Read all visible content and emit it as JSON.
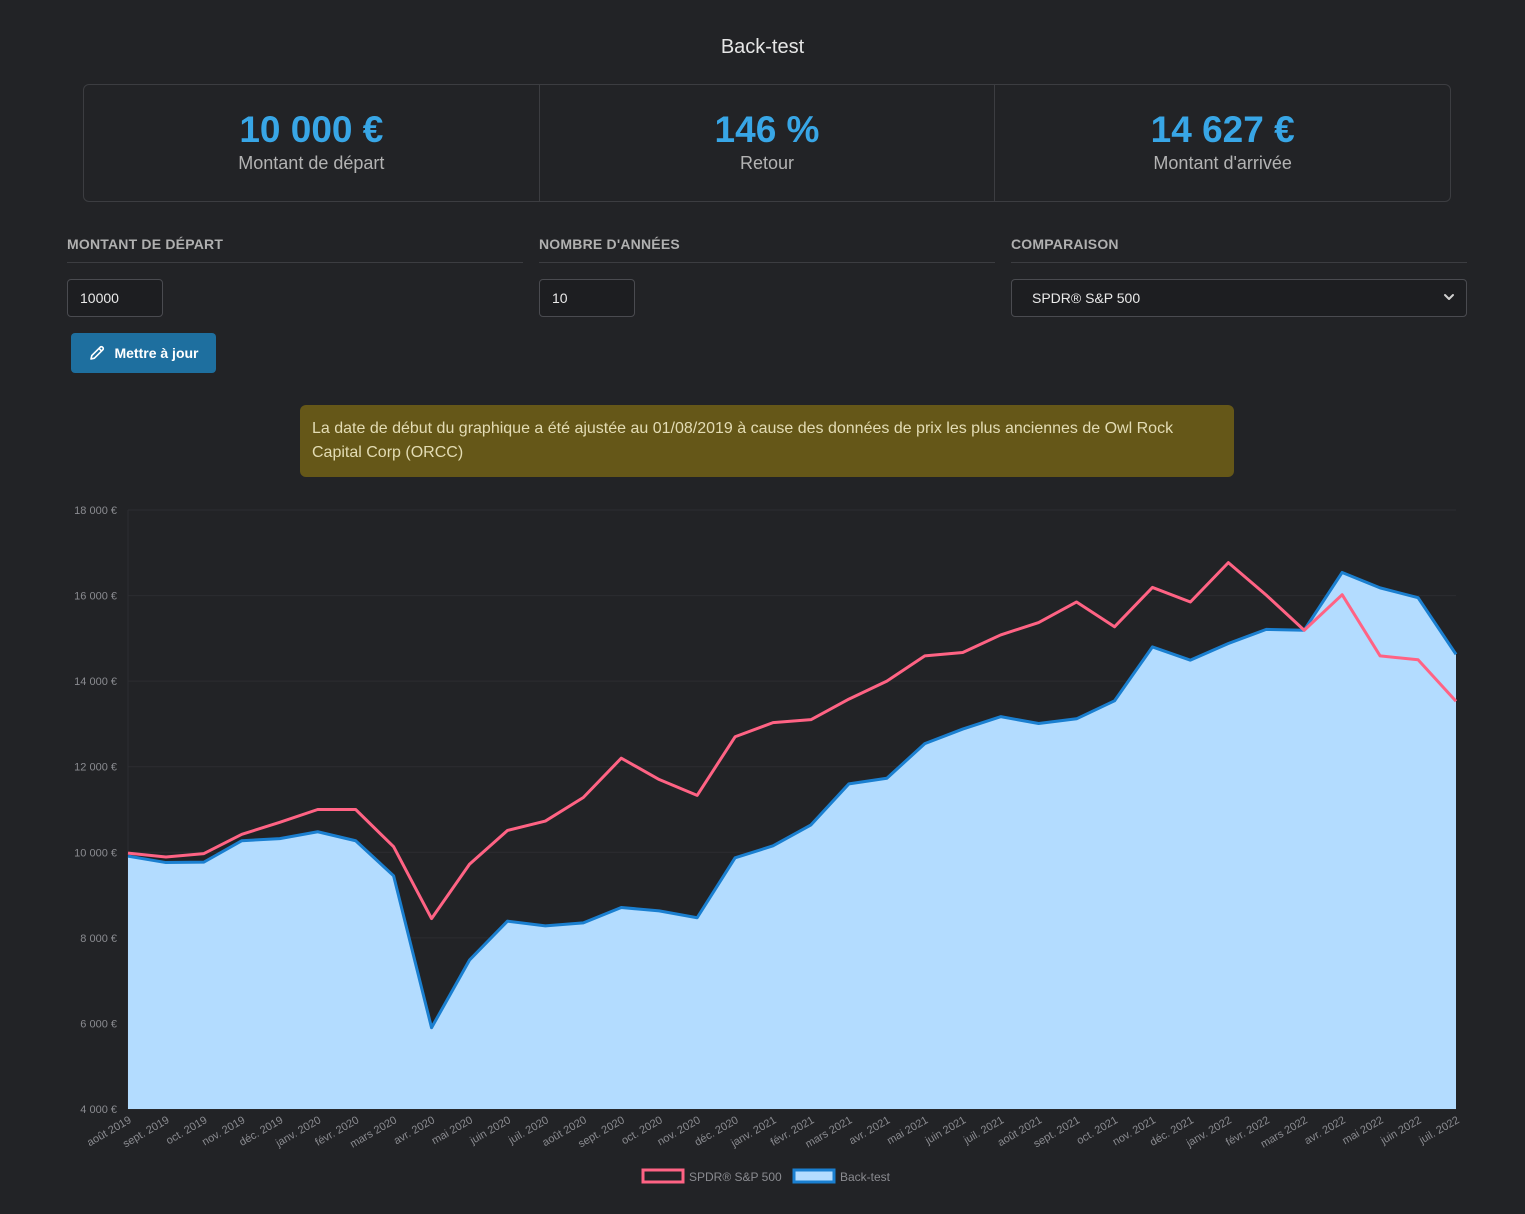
{
  "page": {
    "title": "Back-test"
  },
  "stats": [
    {
      "value": "10 000 €",
      "label": "Montant de départ"
    },
    {
      "value": "146 %",
      "label": "Retour"
    },
    {
      "value": "14 627 €",
      "label": "Montant d'arrivée"
    }
  ],
  "form": {
    "amount_label": "MONTANT DE DÉPART",
    "amount_value": "10000",
    "years_label": "NOMBRE D'ANNÉES",
    "years_value": "10",
    "compare_label": "COMPARAISON",
    "compare_value": "SPDR® S&P 500"
  },
  "update_button": {
    "label": "Mettre à jour",
    "icon": "pencil-icon"
  },
  "alert": {
    "text": "La date de début du graphique a été ajustée au 01/08/2019 à cause des données de prix les plus anciennes de Owl Rock Capital Corp (ORCC)"
  },
  "colors": {
    "accent": "#38a6e6",
    "button": "#1e6f9f",
    "alert_bg": "#655718",
    "sp500_line": "#ff6384",
    "backtest_line": "#1a7fd0",
    "backtest_fill": "#b3dcff"
  },
  "chart_data": {
    "type": "area",
    "y_ticks": [
      "4 000 €",
      "6 000 €",
      "8 000 €",
      "10 000 €",
      "12 000 €",
      "14 000 €",
      "16 000 €",
      "18 000 €"
    ],
    "ylim": [
      4000,
      18000
    ],
    "grid": true,
    "legend": "bottom-center",
    "x": [
      "août 2019",
      "sept. 2019",
      "oct. 2019",
      "nov. 2019",
      "déc. 2019",
      "janv. 2020",
      "févr. 2020",
      "mars 2020",
      "avr. 2020",
      "mai 2020",
      "juin 2020",
      "juil. 2020",
      "août 2020",
      "sept. 2020",
      "oct. 2020",
      "nov. 2020",
      "déc. 2020",
      "janv. 2021",
      "févr. 2021",
      "mars 2021",
      "avr. 2021",
      "mai 2021",
      "juin 2021",
      "juil. 2021",
      "août 2021",
      "sept. 2021",
      "oct. 2021",
      "nov. 2021",
      "déc. 2021",
      "janv. 2022",
      "févr. 2022",
      "mars 2022",
      "avr. 2022",
      "mai 2022",
      "juin 2022",
      "juil. 2022"
    ],
    "series": [
      {
        "name": "SPDR® S&P 500",
        "values": [
          9980,
          9890,
          9970,
          10420,
          10700,
          11000,
          11000,
          10130,
          8450,
          9720,
          10510,
          10730,
          11280,
          12200,
          11700,
          11330,
          12700,
          13030,
          13100,
          13580,
          14000,
          14590,
          14670,
          15080,
          15370,
          15850,
          15270,
          16190,
          15850,
          16770,
          16010,
          15190,
          16020,
          14590,
          14500,
          13530
        ]
      },
      {
        "name": "Back-test",
        "values": [
          9910,
          9760,
          9770,
          10270,
          10320,
          10480,
          10270,
          9450,
          5900,
          7480,
          8390,
          8280,
          8350,
          8710,
          8630,
          8470,
          9870,
          10150,
          10640,
          11600,
          11730,
          12540,
          12880,
          13170,
          13010,
          13120,
          13540,
          14800,
          14490,
          14880,
          15210,
          15190,
          16540,
          16180,
          15950,
          14627
        ]
      }
    ]
  }
}
